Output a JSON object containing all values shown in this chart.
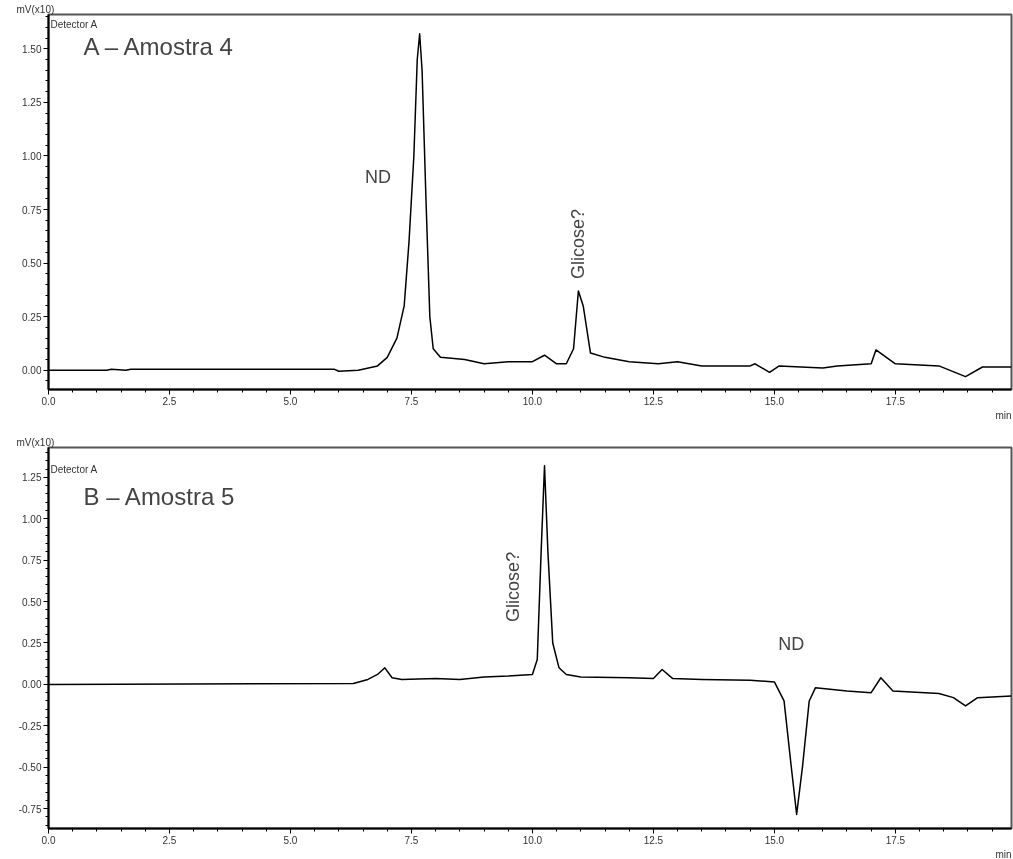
{
  "chart_data": [
    {
      "type": "line",
      "title": "A – Amostra 4",
      "ylabel": "mV(x10)",
      "xlabel": "min",
      "grid": false,
      "xlim": [
        0,
        19.9
      ],
      "ylim": [
        -0.09,
        1.66
      ],
      "xticks": [
        {
          "value": 0,
          "label": "0.0"
        },
        {
          "value": 2.5,
          "label": "2.5"
        },
        {
          "value": 5,
          "label": "5.0"
        },
        {
          "value": 7.5,
          "label": "7.5"
        },
        {
          "value": 10,
          "label": "10.0"
        },
        {
          "value": 12.5,
          "label": "12.5"
        },
        {
          "value": 15,
          "label": "15.0"
        },
        {
          "value": 17.5,
          "label": "17.5"
        }
      ],
      "yticks": [
        {
          "value": 0,
          "label": "0.00"
        },
        {
          "value": 0.25,
          "label": "0.25"
        },
        {
          "value": 0.5,
          "label": "0.50"
        },
        {
          "value": 0.75,
          "label": "0.75"
        },
        {
          "value": 1,
          "label": "1.00"
        },
        {
          "value": 1.25,
          "label": "1.25"
        },
        {
          "value": 1.5,
          "label": "1.50"
        }
      ],
      "annotations": [
        "Detector A",
        {
          "text": "ND",
          "x": 7.53,
          "y": 0.9
        },
        {
          "text": "Glicose?",
          "x": 10.95,
          "y": 0.37
        }
      ],
      "series": [
        {
          "color": "#000000",
          "x": [
            0,
            1.2,
            1.3,
            1.6,
            1.7,
            5.9,
            6.0,
            6.4,
            6.8,
            7.0,
            7.2,
            7.35,
            7.45,
            7.55,
            7.62,
            7.67,
            7.72,
            7.8,
            7.88,
            7.95,
            8.1,
            8.6,
            9.0,
            9.5,
            10.0,
            10.25,
            10.5,
            10.7,
            10.85,
            10.95,
            11.05,
            11.2,
            11.5,
            12.0,
            12.6,
            13.0,
            13.5,
            14.5,
            14.6,
            14.9,
            15.1,
            16.0,
            16.3,
            17.0,
            17.1,
            17.5,
            18.4,
            18.95,
            19.3,
            19.9
          ],
          "values": [
            0,
            0,
            0.005,
            0,
            0.005,
            0.005,
            -0.005,
            0,
            0.02,
            0.06,
            0.15,
            0.3,
            0.6,
            1.0,
            1.45,
            1.57,
            1.4,
            0.8,
            0.25,
            0.1,
            0.06,
            0.05,
            0.03,
            0.04,
            0.04,
            0.07,
            0.03,
            0.03,
            0.1,
            0.37,
            0.3,
            0.08,
            0.06,
            0.04,
            0.03,
            0.04,
            0.02,
            0.02,
            0.03,
            -0.01,
            0.02,
            0.01,
            0.02,
            0.03,
            0.095,
            0.03,
            0.02,
            -0.03,
            0.015,
            0.015
          ]
        }
      ]
    },
    {
      "type": "line",
      "title": "B – Amostra 5",
      "ylabel": "mV(x10)",
      "xlabel": "min",
      "grid": false,
      "xlim": [
        0,
        19.9
      ],
      "ylim": [
        -0.87,
        1.43
      ],
      "xticks": [
        {
          "value": 0,
          "label": "0.0"
        },
        {
          "value": 2.5,
          "label": "2.5"
        },
        {
          "value": 5,
          "label": "5.0"
        },
        {
          "value": 7.5,
          "label": "7.5"
        },
        {
          "value": 10,
          "label": "10.0"
        },
        {
          "value": 12.5,
          "label": "12.5"
        },
        {
          "value": 15,
          "label": "15.0"
        },
        {
          "value": 17.5,
          "label": "17.5"
        }
      ],
      "yticks": [
        {
          "value": -0.75,
          "label": "-0.75"
        },
        {
          "value": -0.5,
          "label": "-0.50"
        },
        {
          "value": -0.25,
          "label": "-0.25"
        },
        {
          "value": 0,
          "label": "0.00"
        },
        {
          "value": 0.25,
          "label": "0.25"
        },
        {
          "value": 0.5,
          "label": "0.50"
        },
        {
          "value": 0.75,
          "label": "0.75"
        },
        {
          "value": 1,
          "label": "1.00"
        },
        {
          "value": 1.25,
          "label": "1.25"
        }
      ],
      "annotations": [
        "Detector A",
        {
          "text": "Glicose?",
          "x": 10.18,
          "y": 0.8
        },
        {
          "text": "ND",
          "x": 15.1,
          "y": 0.0
        }
      ],
      "series": [
        {
          "color": "#000000",
          "x": [
            0,
            6.3,
            6.6,
            6.8,
            6.95,
            7.1,
            7.3,
            8.0,
            8.5,
            9.0,
            9.5,
            10.0,
            10.1,
            10.18,
            10.25,
            10.32,
            10.42,
            10.55,
            10.7,
            11.0,
            12.0,
            12.5,
            12.68,
            12.9,
            13.5,
            14.5,
            15.0,
            15.2,
            15.35,
            15.46,
            15.58,
            15.72,
            15.85,
            16.5,
            17.0,
            17.2,
            17.45,
            18.4,
            18.7,
            18.95,
            19.2,
            19.9
          ],
          "values": [
            0,
            0.005,
            0.03,
            0.06,
            0.1,
            0.04,
            0.03,
            0.035,
            0.03,
            0.045,
            0.05,
            0.06,
            0.15,
            0.8,
            1.32,
            0.8,
            0.25,
            0.1,
            0.06,
            0.045,
            0.04,
            0.035,
            0.09,
            0.035,
            0.03,
            0.025,
            0.015,
            -0.1,
            -0.5,
            -0.785,
            -0.5,
            -0.1,
            -0.02,
            -0.04,
            -0.05,
            0.04,
            -0.04,
            -0.055,
            -0.08,
            -0.13,
            -0.08,
            -0.07
          ]
        }
      ]
    }
  ]
}
